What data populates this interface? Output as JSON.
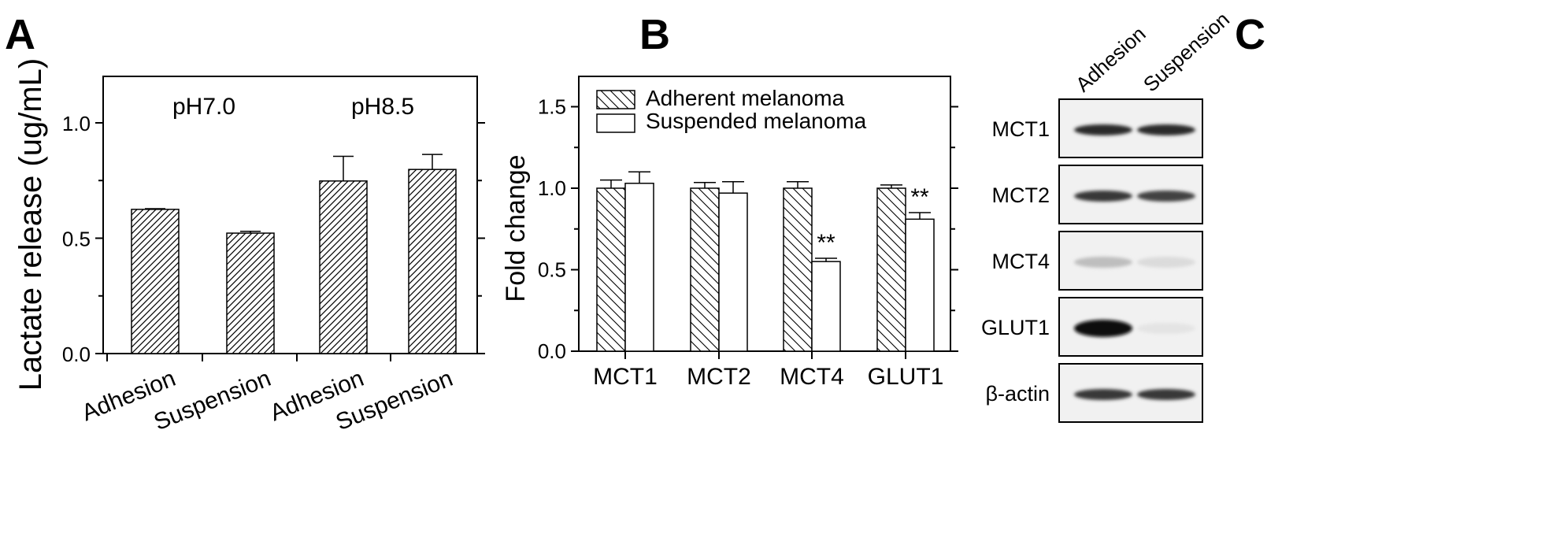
{
  "figure": {
    "panel_labels": [
      "A",
      "B",
      "C"
    ]
  },
  "chart_data": [
    {
      "panel": "A",
      "type": "bar",
      "title": "",
      "xlabel": "",
      "ylabel": "Lactate release (ug/mL)",
      "ylim": [
        0,
        1.2
      ],
      "yticks": [
        "0.0",
        "0.5",
        "1.0"
      ],
      "group_labels": [
        "pH7.0",
        "pH8.5"
      ],
      "categories": [
        "Adhesion",
        "Suspension",
        "Adhesion",
        "Suspension"
      ],
      "values": [
        0.625,
        0.522,
        0.748,
        0.798
      ],
      "errors": [
        0.003,
        0.008,
        0.107,
        0.065
      ],
      "fill": "diagonal-hatch",
      "grid": false
    },
    {
      "panel": "B",
      "type": "bar",
      "title": "",
      "xlabel": "",
      "ylabel": "Fold change",
      "ylim": [
        0,
        1.7
      ],
      "yticks": [
        "0.0",
        "0.5",
        "1.0",
        "1.5"
      ],
      "categories": [
        "MCT1",
        "MCT2",
        "MCT4",
        "GLUT1"
      ],
      "series": [
        {
          "name": "Adherent melanoma",
          "values": [
            1.0,
            1.0,
            1.0,
            1.0
          ],
          "errors": [
            0.05,
            0.035,
            0.04,
            0.02
          ],
          "fill": "back-hatch"
        },
        {
          "name": "Suspended melanoma",
          "values": [
            1.03,
            0.97,
            0.55,
            0.81
          ],
          "errors": [
            0.07,
            0.07,
            0.02,
            0.04
          ],
          "fill": "white"
        }
      ],
      "significance": [
        {
          "category": "MCT4",
          "series": "Suspended melanoma",
          "mark": "**"
        },
        {
          "category": "GLUT1",
          "series": "Suspended melanoma",
          "mark": "**"
        }
      ],
      "legend_position": "top-left",
      "grid": false
    }
  ],
  "blot": {
    "columns": [
      "Adhesion",
      "Suspension"
    ],
    "rows": [
      "MCT1",
      "MCT2",
      "MCT4",
      "GLUT1",
      "β-actin"
    ],
    "band_intensity": [
      [
        0.85,
        0.85
      ],
      [
        0.8,
        0.75
      ],
      [
        0.2,
        0.07
      ],
      [
        1.0,
        0.03
      ],
      [
        0.8,
        0.8
      ]
    ]
  }
}
